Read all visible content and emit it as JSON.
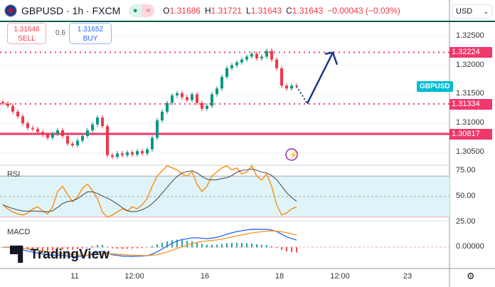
{
  "header": {
    "symbol": "GBPUSD · 1h · FXCM",
    "open_label": "O",
    "open": "1.31686",
    "high_label": "H",
    "high": "1.31721",
    "low_label": "L",
    "low": "1.31643",
    "close_label": "C",
    "close": "1.31643",
    "change": "−0.00043 (−0.03%)"
  },
  "trade": {
    "sell_price": "1.31646",
    "sell_label": "SELL",
    "spread": "0.6",
    "buy_price": "1.31652",
    "buy_label": "BUY"
  },
  "currency": "USD",
  "symbol_tag": "GBPUSD",
  "logo": "TradingView",
  "colors": {
    "up": "#089981",
    "down": "#f23645",
    "level": "#f0386b",
    "arrow": "#1e3a8a",
    "rsi": "#f7931e",
    "macd": "#2962ff",
    "signal": "#f7931e"
  },
  "chart_data": {
    "type": "candlestick",
    "title": "GBPUSD · 1h · FXCM",
    "ylim": [
      1.3025,
      1.3275
    ],
    "price_ticks": [
      "1.32500",
      "1.32000",
      "1.31500",
      "1.31000",
      "1.30500"
    ],
    "price_tick_values": [
      1.325,
      1.32,
      1.315,
      1.31,
      1.305
    ],
    "levels": [
      {
        "label": "1.32224",
        "value": 1.32224,
        "style": "dotted"
      },
      {
        "label": "1.31334",
        "value": 1.31334,
        "style": "dotted"
      },
      {
        "label": "1.30817",
        "value": 1.30817,
        "style": "solid"
      }
    ],
    "closes": [
      1.3134,
      1.313,
      1.312,
      1.3112,
      1.31,
      1.3092,
      1.309,
      1.3085,
      1.308,
      1.3075,
      1.3082,
      1.3088,
      1.3078,
      1.3065,
      1.3062,
      1.307,
      1.3078,
      1.3088,
      1.3098,
      1.311,
      1.3095,
      1.3045,
      1.3042,
      1.3048,
      1.3045,
      1.305,
      1.3046,
      1.3052,
      1.3048,
      1.3055,
      1.3075,
      1.3105,
      1.312,
      1.3135,
      1.3148,
      1.3152,
      1.3145,
      1.314,
      1.315,
      1.3135,
      1.3125,
      1.313,
      1.315,
      1.316,
      1.318,
      1.3195,
      1.32,
      1.3205,
      1.321,
      1.3215,
      1.322,
      1.3212,
      1.3215,
      1.3225,
      1.321,
      1.3195,
      1.3165,
      1.316,
      1.3165,
      1.3164
    ],
    "projection": [
      1.3134,
      1.3222
    ],
    "x_ticks": [
      "11",
      "12:00",
      "16",
      "18",
      "12:00",
      "23"
    ],
    "rsi": {
      "label": "RSI",
      "ticks": [
        "75.00",
        "50.00",
        "25.00"
      ],
      "tick_values": [
        75,
        50,
        25
      ],
      "band": [
        30,
        70
      ],
      "values": [
        42,
        38,
        35,
        33,
        32,
        34,
        38,
        40,
        36,
        33,
        40,
        55,
        60,
        52,
        45,
        50,
        58,
        62,
        56,
        48,
        35,
        30,
        32,
        35,
        38,
        36,
        40,
        38,
        42,
        48,
        60,
        70,
        75,
        80,
        78,
        76,
        72,
        70,
        74,
        62,
        55,
        60,
        70,
        74,
        78,
        80,
        76,
        78,
        72,
        74,
        80,
        70,
        66,
        72,
        60,
        42,
        32,
        34,
        38,
        40
      ]
    },
    "macd": {
      "label": "MACD",
      "ticks": [
        "0.00000"
      ],
      "tick_values": [
        0
      ]
    }
  }
}
